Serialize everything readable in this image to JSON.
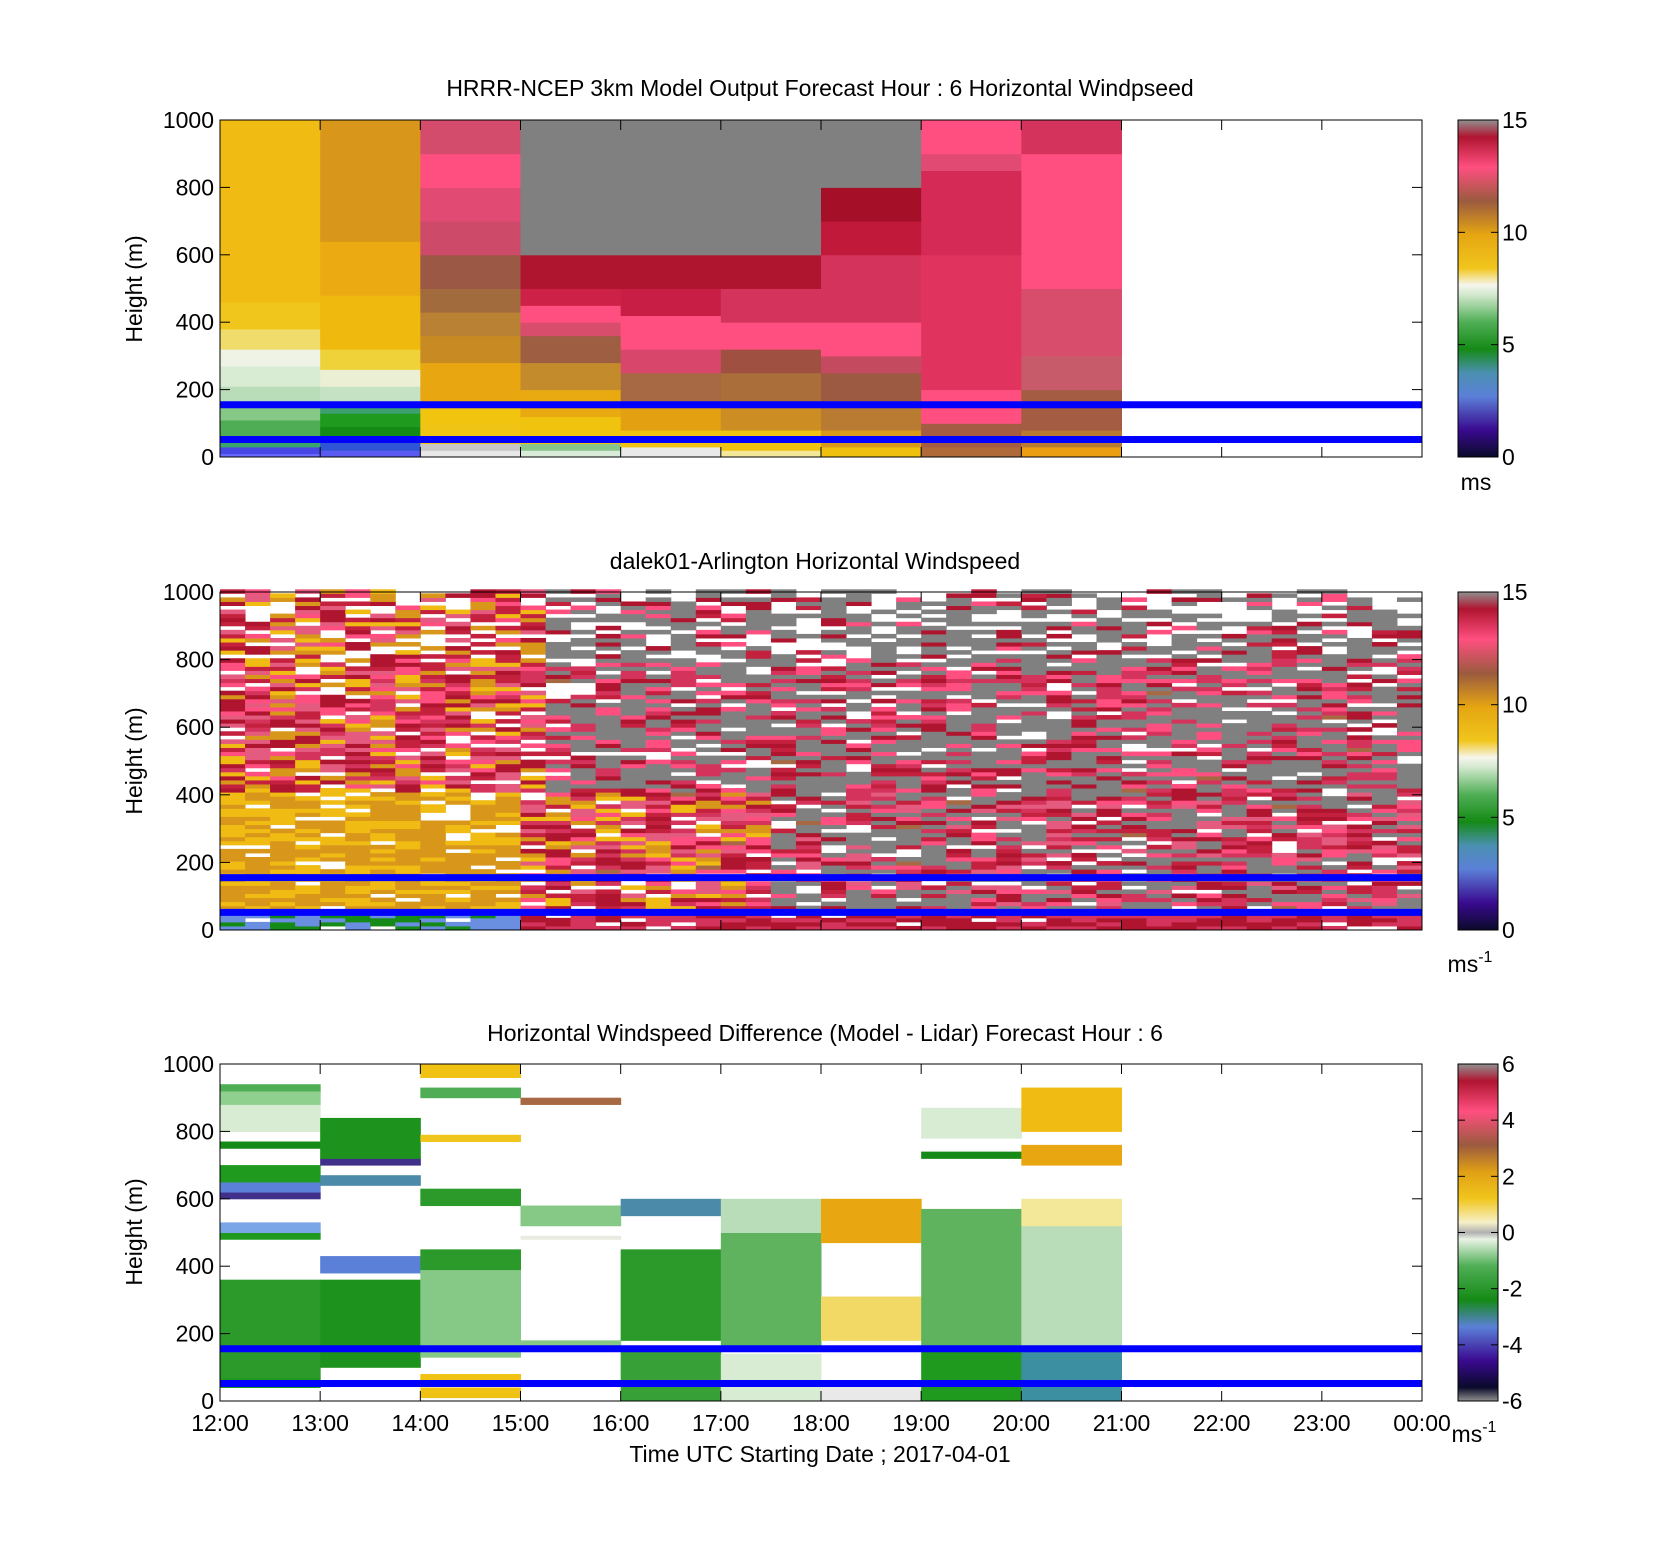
{
  "chart_data": [
    {
      "type": "heatmap",
      "title": "HRRR-NCEP 3km Model Output   Forecast Hour : 6 Horizontal Windpseed",
      "ylabel": "Height (m)",
      "xlabel": "",
      "ylim": [
        0,
        1000
      ],
      "yticks": [
        "0",
        "200",
        "400",
        "600",
        "800",
        "1000"
      ],
      "xlim_hours": [
        12,
        24
      ],
      "reference_lines_m": [
        155,
        52
      ],
      "reference_line_color": "#0000ff",
      "colorbar": {
        "min": 0,
        "max": 15,
        "ticks": [
          "0",
          "5",
          "10",
          "15"
        ],
        "unit": "ms",
        "unit_sup": ""
      },
      "columns": [
        {
          "hour": 12,
          "bands": [
            [
              0,
              10,
              "#6a6aff"
            ],
            [
              10,
              30,
              "#4747e6"
            ],
            [
              30,
              60,
              "#39a56a"
            ],
            [
              60,
              110,
              "#4fae55"
            ],
            [
              110,
              160,
              "#86c987"
            ],
            [
              160,
              210,
              "#b9dcb9"
            ],
            [
              210,
              270,
              "#d8ebd3"
            ],
            [
              270,
              320,
              "#eef3e6"
            ],
            [
              320,
              380,
              "#f0dc6a"
            ],
            [
              380,
              460,
              "#f1c61c"
            ],
            [
              460,
              1000,
              "#f0bb13"
            ]
          ]
        },
        {
          "hour": 13,
          "bands": [
            [
              0,
              20,
              "#5a5af0"
            ],
            [
              20,
              50,
              "#2f55d6"
            ],
            [
              50,
              90,
              "#158a16"
            ],
            [
              90,
              130,
              "#1f9a1f"
            ],
            [
              130,
              160,
              "#3ea06e"
            ],
            [
              160,
              210,
              "#c6e2c4"
            ],
            [
              210,
              260,
              "#ebefd4"
            ],
            [
              260,
              320,
              "#efd239"
            ],
            [
              320,
              480,
              "#f0b90e"
            ],
            [
              480,
              640,
              "#ebaa12"
            ],
            [
              640,
              1000,
              "#d8971a"
            ]
          ]
        },
        {
          "hour": 14,
          "bands": [
            [
              0,
              20,
              "#e8e8e8"
            ],
            [
              20,
              40,
              "#c6c6c6"
            ],
            [
              40,
              100,
              "#f0c414"
            ],
            [
              100,
              160,
              "#f1c40f"
            ],
            [
              160,
              280,
              "#e8a711"
            ],
            [
              280,
              360,
              "#c88a22"
            ],
            [
              360,
              430,
              "#b88133"
            ],
            [
              430,
              500,
              "#a26b3e"
            ],
            [
              500,
              600,
              "#9b5945"
            ],
            [
              600,
              700,
              "#cd4a68"
            ],
            [
              700,
              800,
              "#e04a73"
            ],
            [
              800,
              900,
              "#ff4f80"
            ],
            [
              900,
              1000,
              "#d44c6b"
            ]
          ]
        },
        {
          "hour": 15,
          "bands": [
            [
              0,
              20,
              "#d9ecd9"
            ],
            [
              20,
              40,
              "#89c58a"
            ],
            [
              40,
              120,
              "#f0c30e"
            ],
            [
              120,
              200,
              "#e8a911"
            ],
            [
              200,
              280,
              "#c48b2d"
            ],
            [
              280,
              360,
              "#9e5e42"
            ],
            [
              360,
              400,
              "#d94d6c"
            ],
            [
              400,
              450,
              "#ff4f80"
            ],
            [
              450,
              500,
              "#cd2147"
            ],
            [
              500,
              600,
              "#b01530"
            ],
            [
              600,
              1000,
              "#808080"
            ]
          ]
        },
        {
          "hour": 16,
          "bands": [
            [
              0,
              30,
              "#e9e9e9"
            ],
            [
              30,
              80,
              "#f0c214"
            ],
            [
              80,
              150,
              "#e3a010"
            ],
            [
              150,
              250,
              "#a66943"
            ],
            [
              250,
              320,
              "#d8466b"
            ],
            [
              320,
              420,
              "#ff4f80"
            ],
            [
              420,
              500,
              "#c81e45"
            ],
            [
              500,
              600,
              "#b01530"
            ],
            [
              600,
              1000,
              "#808080"
            ]
          ]
        },
        {
          "hour": 17,
          "bands": [
            [
              0,
              20,
              "#f3e79a"
            ],
            [
              20,
              80,
              "#f0c211"
            ],
            [
              80,
              150,
              "#cc8d22"
            ],
            [
              150,
              250,
              "#aa6e3b"
            ],
            [
              250,
              320,
              "#a05040"
            ],
            [
              320,
              400,
              "#ff4f80"
            ],
            [
              400,
              500,
              "#d4345c"
            ],
            [
              500,
              600,
              "#b01530"
            ],
            [
              600,
              1000,
              "#808080"
            ]
          ]
        },
        {
          "hour": 18,
          "bands": [
            [
              0,
              30,
              "#f0c00e"
            ],
            [
              30,
              80,
              "#d89a1a"
            ],
            [
              80,
              150,
              "#b97a32"
            ],
            [
              150,
              250,
              "#9d5a43"
            ],
            [
              250,
              300,
              "#c44a60"
            ],
            [
              300,
              400,
              "#ff4f80"
            ],
            [
              400,
              600,
              "#d4345c"
            ],
            [
              600,
              700,
              "#c0193a"
            ],
            [
              700,
              800,
              "#a60f28"
            ],
            [
              800,
              1000,
              "#808080"
            ]
          ]
        },
        {
          "hour": 19,
          "bands": [
            [
              0,
              30,
              "#b06a3a"
            ],
            [
              30,
              100,
              "#a45c42"
            ],
            [
              100,
              200,
              "#ff4f80"
            ],
            [
              200,
              600,
              "#e0345e"
            ],
            [
              600,
              850,
              "#d42a55"
            ],
            [
              850,
              900,
              "#e04a73"
            ],
            [
              900,
              1000,
              "#ff4f80"
            ]
          ]
        },
        {
          "hour": 20,
          "bands": [
            [
              0,
              30,
              "#ec9e12"
            ],
            [
              30,
              80,
              "#b97a32"
            ],
            [
              80,
              200,
              "#a45c42"
            ],
            [
              200,
              300,
              "#c75b6a"
            ],
            [
              300,
              500,
              "#d94d6c"
            ],
            [
              500,
              800,
              "#ff4f80"
            ],
            [
              800,
              900,
              "#ff4f80"
            ],
            [
              900,
              1000,
              "#d4345c"
            ]
          ]
        }
      ]
    },
    {
      "type": "heatmap",
      "title": "dalek01-Arlington  Horizontal Windspeed",
      "ylabel": "Height (m)",
      "xlabel": "",
      "ylim": [
        0,
        1000
      ],
      "yticks": [
        "0",
        "200",
        "400",
        "600",
        "800",
        "1000"
      ],
      "xlim_hours": [
        12,
        24
      ],
      "reference_lines_m": [
        155,
        52
      ],
      "reference_line_color": "#0000ff",
      "colorbar": {
        "min": 0,
        "max": 15,
        "ticks": [
          "0",
          "5",
          "10",
          "15"
        ],
        "unit": "ms",
        "unit_sup": "-1"
      },
      "note": "dense observational lidar field; reproduced as a pattern",
      "palette": [
        "#f0bb13",
        "#d8971a",
        "#a66943",
        "#d4345c",
        "#ff4f80",
        "#b01530",
        "#808080",
        "#c4213f",
        "#e45b7f",
        "#158a16",
        "#6a8fe0",
        "#eef3e6"
      ]
    },
    {
      "type": "heatmap",
      "title": "Horizontal Windspeed Difference (Model - Lidar) Forecast Hour : 6",
      "ylabel": "Height (m)",
      "xlabel": "Time UTC  Starting Date ; 2017-04-01",
      "xticks": [
        "12:00",
        "13:00",
        "14:00",
        "15:00",
        "16:00",
        "17:00",
        "18:00",
        "19:00",
        "20:00",
        "21:00",
        "22:00",
        "23:00",
        "00:00"
      ],
      "ylim": [
        0,
        1000
      ],
      "yticks": [
        "0",
        "200",
        "400",
        "600",
        "800",
        "1000"
      ],
      "xlim_hours": [
        12,
        24
      ],
      "reference_lines_m": [
        155,
        52
      ],
      "reference_line_color": "#0000ff",
      "colorbar": {
        "min": -6,
        "max": 6,
        "ticks": [
          "-6",
          "-4",
          "-2",
          "0",
          "2",
          "4",
          "6"
        ],
        "unit": "ms",
        "unit_sup": "-1"
      },
      "columns": [
        {
          "hour": 12,
          "bands": [
            [
              40,
              70,
              "#1f9a1f"
            ],
            [
              70,
              360,
              "#2b9a2b"
            ],
            [
              480,
              500,
              "#1f9a1f"
            ],
            [
              500,
              530,
              "#7aa6e8"
            ],
            [
              600,
              620,
              "#40308a"
            ],
            [
              620,
              650,
              "#5b80d8"
            ],
            [
              650,
              700,
              "#1f9a1f"
            ],
            [
              750,
              770,
              "#158a16"
            ],
            [
              800,
              880,
              "#d8ebd3"
            ],
            [
              880,
              920,
              "#8fd08f"
            ],
            [
              920,
              940,
              "#4fae55"
            ]
          ]
        },
        {
          "hour": 13,
          "bands": [
            [
              100,
              360,
              "#1d921d"
            ],
            [
              380,
              430,
              "#5b80d8"
            ],
            [
              640,
              670,
              "#4b8aa8"
            ],
            [
              700,
              720,
              "#40308a"
            ],
            [
              720,
              840,
              "#1d921d"
            ]
          ]
        },
        {
          "hour": 14,
          "bands": [
            [
              10,
              40,
              "#f0c214"
            ],
            [
              60,
              80,
              "#f0c214"
            ],
            [
              130,
              390,
              "#86c987"
            ],
            [
              390,
              450,
              "#2b9a2b"
            ],
            [
              580,
              630,
              "#2b9a2b"
            ],
            [
              770,
              790,
              "#f1c61c"
            ],
            [
              900,
              930,
              "#4fae55"
            ],
            [
              960,
              1000,
              "#f0c214"
            ]
          ]
        },
        {
          "hour": 15,
          "bands": [
            [
              160,
              180,
              "#86c987"
            ],
            [
              480,
              490,
              "#e8ebe0"
            ],
            [
              520,
              580,
              "#86c987"
            ],
            [
              880,
              900,
              "#a66943"
            ]
          ]
        },
        {
          "hour": 16,
          "bands": [
            [
              0,
              160,
              "#37a037"
            ],
            [
              180,
              450,
              "#2b9a2b"
            ],
            [
              550,
              600,
              "#4b8aa8"
            ]
          ]
        },
        {
          "hour": 17,
          "bands": [
            [
              0,
              140,
              "#d8ebd3"
            ],
            [
              160,
              500,
              "#5fb35f"
            ],
            [
              500,
              600,
              "#b9dcb9"
            ]
          ]
        },
        {
          "hour": 18,
          "bands": [
            [
              0,
              60,
              "#e9e9e9"
            ],
            [
              180,
              310,
              "#f2d966"
            ],
            [
              470,
              600,
              "#e8a711"
            ]
          ]
        },
        {
          "hour": 19,
          "bands": [
            [
              0,
              160,
              "#1f9a1f"
            ],
            [
              160,
              570,
              "#5fb35f"
            ],
            [
              720,
              740,
              "#158a16"
            ],
            [
              780,
              870,
              "#d8ebd3"
            ]
          ]
        },
        {
          "hour": 20,
          "bands": [
            [
              0,
              160,
              "#3c8fa0"
            ],
            [
              160,
              520,
              "#b9dcb9"
            ],
            [
              520,
              600,
              "#f3e79a"
            ],
            [
              700,
              760,
              "#e8a711"
            ],
            [
              800,
              930,
              "#f0bb13"
            ]
          ]
        }
      ]
    }
  ]
}
